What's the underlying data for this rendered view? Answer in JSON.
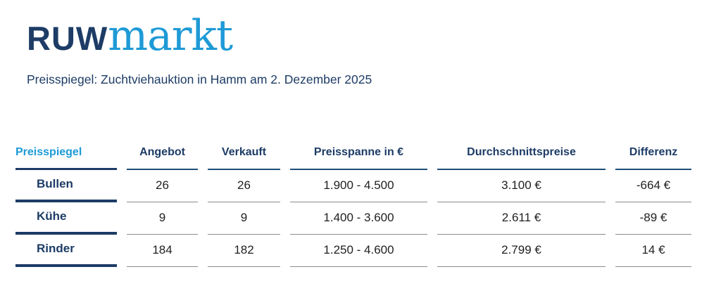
{
  "logo": {
    "ruw": "RUW",
    "markt": "markt"
  },
  "subtitle": "Preisspiegel: Zuchtviehauktion in Hamm am 2. Dezember 2025",
  "colors": {
    "navy": "#1d3c66",
    "light_blue": "#1e9ad6",
    "value_text": "#1f1f1f",
    "separator_gray": "#8c8c8c"
  },
  "table": {
    "columns": [
      "Preisspiegel",
      "Angebot",
      "Verkauft",
      "Preisspanne in €",
      "Durchschnittspreise",
      "Differenz"
    ],
    "rows": [
      {
        "label": "Bullen",
        "angebot": "26",
        "verkauft": "26",
        "preisspanne": "1.900 - 4.500",
        "durchschnittspreis": "3.100 €",
        "differenz": "-664 €"
      },
      {
        "label": "Kühe",
        "angebot": "9",
        "verkauft": "9",
        "preisspanne": "1.400 - 3.600",
        "durchschnittspreis": "2.611 €",
        "differenz": "-89 €"
      },
      {
        "label": "Rinder",
        "angebot": "184",
        "verkauft": "182",
        "preisspanne": "1.250 - 4.600",
        "durchschnittspreis": "2.799 €",
        "differenz": "14 €"
      }
    ]
  }
}
